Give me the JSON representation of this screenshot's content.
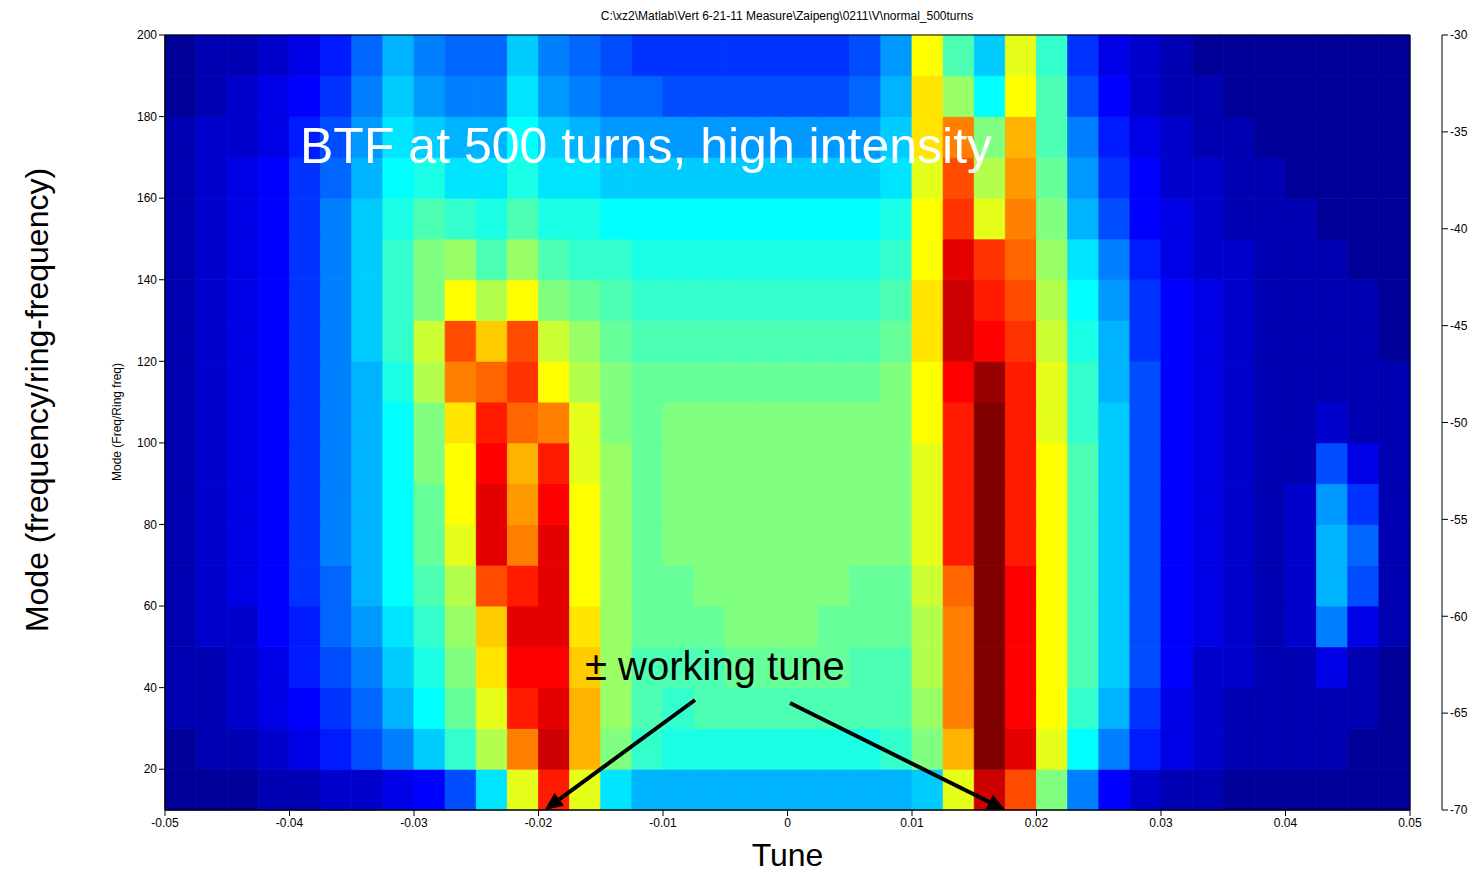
{
  "chart_data": {
    "type": "heatmap",
    "title": "C:\\xz2\\Matlab\\Vert 6-21-11 Measure\\Zaipeng\\0211\\V\\normal_500turns",
    "xlabel": "Tune",
    "ylabel": "Mode (Freq/Ring freq)",
    "xlim": [
      -0.05,
      0.05
    ],
    "xticks": [
      -0.05,
      -0.04,
      -0.03,
      -0.02,
      -0.01,
      0,
      0.01,
      0.02,
      0.03,
      0.04,
      0.05
    ],
    "ylim": [
      10,
      200
    ],
    "yticks": [
      20,
      40,
      60,
      80,
      100,
      120,
      140,
      160,
      180,
      200
    ],
    "grid": false,
    "x_bins": [
      -0.05,
      -0.0475,
      -0.045,
      -0.0425,
      -0.04,
      -0.0375,
      -0.035,
      -0.0325,
      -0.03,
      -0.0275,
      -0.025,
      -0.0225,
      -0.02,
      -0.0175,
      -0.015,
      -0.0125,
      -0.01,
      -0.0075,
      -0.005,
      -0.0025,
      0,
      0.0025,
      0.005,
      0.0075,
      0.01,
      0.0125,
      0.015,
      0.0175,
      0.02,
      0.0225,
      0.025,
      0.0275,
      0.03,
      0.0325,
      0.035,
      0.0375,
      0.04,
      0.0425,
      0.045,
      0.0475,
      0.05
    ],
    "y_bins": [
      10,
      20,
      30,
      40,
      50,
      60,
      70,
      80,
      90,
      100,
      110,
      120,
      130,
      140,
      150,
      160,
      170,
      180,
      190,
      200
    ],
    "z": [
      [
        -69,
        -69,
        -69,
        -68,
        -68,
        -67,
        -67,
        -66,
        -65,
        -62,
        -56,
        -46,
        -36,
        -46,
        -56,
        -58,
        -58,
        -58,
        -58,
        -58,
        -58,
        -58,
        -58,
        -58,
        -57,
        -46,
        -33,
        -38,
        -50,
        -60,
        -65,
        -67,
        -68,
        -68,
        -69,
        -69,
        -69,
        -69,
        -69,
        -69
      ],
      [
        -69,
        -68,
        -68,
        -67,
        -66,
        -64,
        -62,
        -60,
        -57,
        -53,
        -48,
        -40,
        -33,
        -42,
        -50,
        -53,
        -54,
        -54,
        -54,
        -54,
        -54,
        -54,
        -54,
        -53,
        -50,
        -42,
        -30,
        -34,
        -46,
        -55,
        -60,
        -64,
        -66,
        -67,
        -68,
        -68,
        -68,
        -68,
        -69,
        -69
      ],
      [
        -68,
        -68,
        -67,
        -66,
        -65,
        -63,
        -61,
        -58,
        -55,
        -51,
        -46,
        -36,
        -34,
        -42,
        -49,
        -52,
        -53,
        -52,
        -52,
        -52,
        -52,
        -52,
        -52,
        -52,
        -49,
        -40,
        -30,
        -35,
        -45,
        -53,
        -58,
        -63,
        -66,
        -67,
        -68,
        -68,
        -68,
        -68,
        -68,
        -69
      ],
      [
        -68,
        -68,
        -67,
        -66,
        -64,
        -62,
        -60,
        -57,
        -54,
        -50,
        -44,
        -35,
        -35,
        -43,
        -49,
        -52,
        -52,
        -52,
        -51,
        -51,
        -51,
        -51,
        -52,
        -52,
        -48,
        -40,
        -30,
        -35,
        -45,
        -52,
        -57,
        -62,
        -65,
        -67,
        -67,
        -68,
        -68,
        -66,
        -68,
        -69
      ],
      [
        -68,
        -67,
        -67,
        -65,
        -64,
        -61,
        -59,
        -56,
        -53,
        -49,
        -43,
        -34,
        -34,
        -44,
        -49,
        -51,
        -51,
        -51,
        -50,
        -50,
        -50,
        -51,
        -51,
        -51,
        -48,
        -40,
        -30,
        -35,
        -45,
        -52,
        -57,
        -62,
        -65,
        -66,
        -67,
        -68,
        -67,
        -60,
        -66,
        -68
      ],
      [
        -68,
        -67,
        -66,
        -65,
        -63,
        -61,
        -58,
        -55,
        -52,
        -48,
        -38,
        -36,
        -34,
        -45,
        -49,
        -51,
        -51,
        -50,
        -50,
        -50,
        -50,
        -50,
        -51,
        -51,
        -47,
        -39,
        -30,
        -35,
        -45,
        -52,
        -57,
        -62,
        -65,
        -66,
        -67,
        -68,
        -67,
        -58,
        -62,
        -68
      ],
      [
        -68,
        -67,
        -66,
        -65,
        -63,
        -60,
        -58,
        -55,
        -51,
        -46,
        -34,
        -40,
        -34,
        -45,
        -49,
        -51,
        -50,
        -50,
        -50,
        -50,
        -50,
        -50,
        -50,
        -50,
        -46,
        -36,
        -30,
        -36,
        -45,
        -52,
        -57,
        -62,
        -65,
        -66,
        -67,
        -68,
        -67,
        -58,
        -61,
        -68
      ],
      [
        -68,
        -67,
        -66,
        -65,
        -63,
        -60,
        -58,
        -55,
        -51,
        -45,
        -34,
        -41,
        -35,
        -45,
        -49,
        -51,
        -50,
        -50,
        -50,
        -50,
        -50,
        -50,
        -50,
        -50,
        -46,
        -36,
        -30,
        -36,
        -45,
        -52,
        -57,
        -62,
        -65,
        -66,
        -67,
        -68,
        -67,
        -59,
        -63,
        -68
      ],
      [
        -68,
        -67,
        -66,
        -65,
        -63,
        -60,
        -58,
        -55,
        -50,
        -45,
        -35,
        -42,
        -36,
        -46,
        -49,
        -51,
        -50,
        -50,
        -50,
        -50,
        -50,
        -50,
        -50,
        -50,
        -46,
        -36,
        -30,
        -36,
        -45,
        -52,
        -57,
        -62,
        -65,
        -66,
        -67,
        -68,
        -68,
        -62,
        -66,
        -68
      ],
      [
        -68,
        -67,
        -66,
        -65,
        -63,
        -60,
        -58,
        -55,
        -50,
        -44,
        -36,
        -39,
        -40,
        -46,
        -50,
        -51,
        -50,
        -50,
        -50,
        -50,
        -50,
        -50,
        -50,
        -50,
        -45,
        -36,
        -30,
        -36,
        -46,
        -53,
        -57,
        -62,
        -65,
        -66,
        -67,
        -68,
        -68,
        -67,
        -68,
        -68
      ],
      [
        -68,
        -67,
        -66,
        -65,
        -63,
        -60,
        -58,
        -54,
        -48,
        -40,
        -39,
        -37,
        -45,
        -48,
        -50,
        -51,
        -51,
        -51,
        -51,
        -51,
        -51,
        -51,
        -51,
        -50,
        -45,
        -35,
        -31,
        -36,
        -46,
        -53,
        -58,
        -62,
        -65,
        -66,
        -67,
        -68,
        -68,
        -68,
        -68,
        -68
      ],
      [
        -68,
        -67,
        -66,
        -65,
        -63,
        -60,
        -57,
        -53,
        -47,
        -38,
        -43,
        -38,
        -47,
        -49,
        -51,
        -52,
        -52,
        -52,
        -52,
        -52,
        -52,
        -52,
        -52,
        -51,
        -44,
        -33,
        -35,
        -37,
        -47,
        -54,
        -58,
        -63,
        -65,
        -66,
        -67,
        -68,
        -68,
        -68,
        -68,
        -69
      ],
      [
        -68,
        -67,
        -66,
        -65,
        -63,
        -60,
        -57,
        -53,
        -50,
        -45,
        -48,
        -45,
        -50,
        -51,
        -52,
        -53,
        -53,
        -53,
        -53,
        -53,
        -53,
        -53,
        -53,
        -52,
        -44,
        -33,
        -36,
        -38,
        -48,
        -55,
        -59,
        -63,
        -65,
        -66,
        -67,
        -68,
        -68,
        -68,
        -68,
        -69
      ],
      [
        -68,
        -67,
        -66,
        -65,
        -63,
        -60,
        -57,
        -53,
        -50,
        -49,
        -52,
        -49,
        -52,
        -53,
        -53,
        -54,
        -54,
        -54,
        -54,
        -54,
        -54,
        -54,
        -54,
        -53,
        -45,
        -34,
        -37,
        -39,
        -49,
        -56,
        -60,
        -64,
        -66,
        -67,
        -67,
        -68,
        -68,
        -68,
        -69,
        -69
      ],
      [
        -68,
        -67,
        -66,
        -65,
        -63,
        -60,
        -57,
        -54,
        -52,
        -53,
        -54,
        -52,
        -54,
        -54,
        -55,
        -55,
        -55,
        -55,
        -55,
        -55,
        -55,
        -55,
        -55,
        -54,
        -45,
        -37,
        -46,
        -40,
        -50,
        -58,
        -62,
        -65,
        -66,
        -67,
        -68,
        -68,
        -68,
        -69,
        -69,
        -69
      ],
      [
        -68,
        -67,
        -66,
        -65,
        -63,
        -61,
        -58,
        -55,
        -54,
        -56,
        -56,
        -54,
        -56,
        -56,
        -57,
        -57,
        -57,
        -57,
        -57,
        -57,
        -57,
        -57,
        -57,
        -56,
        -46,
        -38,
        -48,
        -41,
        -51,
        -59,
        -63,
        -65,
        -67,
        -67,
        -68,
        -68,
        -69,
        -69,
        -69,
        -69
      ],
      [
        -68,
        -67,
        -67,
        -66,
        -64,
        -62,
        -59,
        -56,
        -57,
        -58,
        -58,
        -55,
        -57,
        -58,
        -59,
        -59,
        -59,
        -59,
        -59,
        -59,
        -59,
        -59,
        -59,
        -57,
        -44,
        -40,
        -50,
        -42,
        -52,
        -60,
        -64,
        -66,
        -67,
        -68,
        -68,
        -69,
        -69,
        -69,
        -69,
        -69
      ],
      [
        -69,
        -68,
        -67,
        -66,
        -65,
        -63,
        -60,
        -57,
        -59,
        -60,
        -60,
        -56,
        -59,
        -60,
        -61,
        -61,
        -62,
        -62,
        -62,
        -62,
        -62,
        -62,
        -61,
        -58,
        -44,
        -49,
        -55,
        -45,
        -52,
        -62,
        -65,
        -67,
        -68,
        -68,
        -69,
        -69,
        -69,
        -69,
        -69,
        -69
      ],
      [
        -69,
        -68,
        -68,
        -67,
        -66,
        -64,
        -61,
        -58,
        -60,
        -61,
        -61,
        -57,
        -60,
        -61,
        -62,
        -63,
        -63,
        -63,
        -63,
        -63,
        -63,
        -63,
        -62,
        -59,
        -45,
        -52,
        -57,
        -46,
        -53,
        -63,
        -66,
        -67,
        -68,
        -69,
        -69,
        -69,
        -69,
        -69,
        -69,
        -69
      ]
    ],
    "colorbar": {
      "range": [
        -70,
        -30
      ],
      "ticks": [
        -70,
        -65,
        -60,
        -55,
        -50,
        -45,
        -40,
        -35,
        -30
      ]
    },
    "annotations": [
      {
        "text": "Mode (frequency/ring-frequency)"
      },
      {
        "text": "BTF at 500 turns, high intensity"
      },
      {
        "text": "± working tune",
        "points_to": [
          {
            "x": -0.0195,
            "y": 10
          },
          {
            "x": 0.0175,
            "y": 10
          }
        ]
      }
    ]
  }
}
